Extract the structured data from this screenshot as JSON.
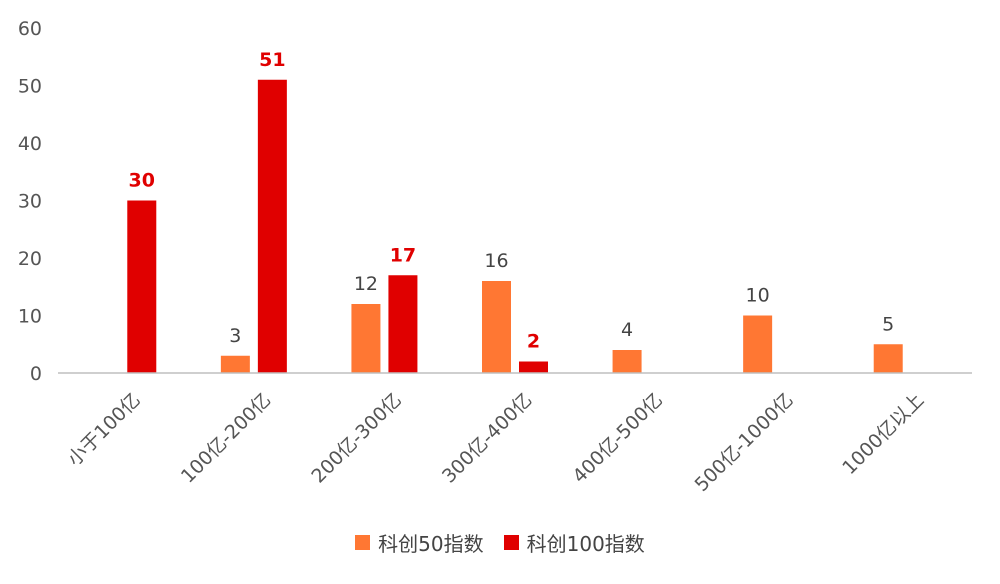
{
  "chart_data": {
    "type": "bar",
    "categories": [
      "小于100亿",
      "100亿-200亿",
      "200亿-300亿",
      "300亿-400亿",
      "400亿-500亿",
      "500亿-1000亿",
      "1000亿以上"
    ],
    "series": [
      {
        "name": "科创50指数",
        "color": "#FF7733",
        "values": [
          null,
          3,
          12,
          16,
          4,
          10,
          5
        ],
        "label_color": "#444444",
        "label_bold": false
      },
      {
        "name": "科创100指数",
        "color": "#E00000",
        "values": [
          30,
          51,
          17,
          2,
          null,
          null,
          null
        ],
        "label_color": "#E00000",
        "label_bold": true
      }
    ],
    "ylim": [
      0,
      60
    ],
    "yticks": [
      0,
      10,
      20,
      30,
      40,
      50,
      60
    ],
    "grid": false,
    "legend_position": "bottom"
  }
}
